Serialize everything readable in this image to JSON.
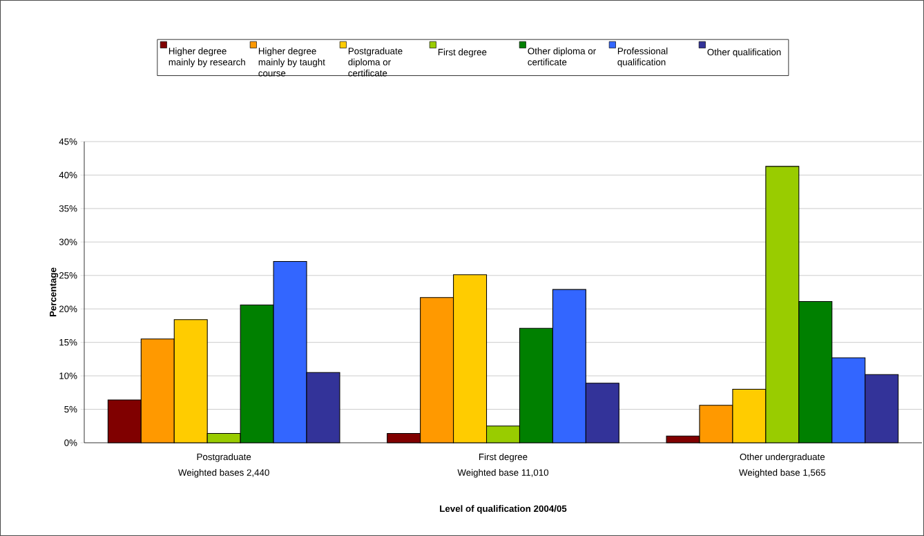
{
  "chart_data": {
    "type": "bar",
    "xlabel": "Level of qualification 2004/05",
    "ylabel": "Percentage",
    "categories": [
      "Postgraduate",
      "First degree",
      "Other undergraduate"
    ],
    "annotations": [
      "Weighted bases 2,440",
      "Weighted base 11,010",
      "Weighted base 1,565"
    ],
    "series": [
      {
        "name": "Higher degree mainly by research",
        "color": "#800000",
        "values": [
          6.4,
          1.4,
          1.0
        ]
      },
      {
        "name": "Higher degree mainly by taught course",
        "color": "#ff9900",
        "values": [
          15.5,
          21.7,
          5.6
        ]
      },
      {
        "name": "Postgraduate diploma or certificate",
        "color": "#ffcc00",
        "values": [
          18.4,
          25.1,
          8.0
        ]
      },
      {
        "name": "First degree",
        "color": "#99cc00",
        "values": [
          1.4,
          2.5,
          41.3
        ]
      },
      {
        "name": "Other diploma or certificate",
        "color": "#008000",
        "values": [
          20.6,
          17.1,
          21.1
        ]
      },
      {
        "name": "Professional qualification",
        "color": "#3366ff",
        "values": [
          27.1,
          22.9,
          12.7
        ]
      },
      {
        "name": "Other qualification",
        "color": "#333399",
        "values": [
          10.5,
          8.9,
          10.2
        ]
      }
    ],
    "ylim": [
      0,
      45
    ],
    "yticks": [
      {
        "value": 0,
        "label": "0%"
      },
      {
        "value": 5,
        "label": "5%"
      },
      {
        "value": 10,
        "label": "10%"
      },
      {
        "value": 15,
        "label": "15%"
      },
      {
        "value": 20,
        "label": "20%"
      },
      {
        "value": 25,
        "label": "25%"
      },
      {
        "value": 30,
        "label": "30%"
      },
      {
        "value": 35,
        "label": "35%"
      },
      {
        "value": 40,
        "label": "40%"
      },
      {
        "value": 45,
        "label": "45%"
      }
    ],
    "grid": "y",
    "legend": "top"
  }
}
